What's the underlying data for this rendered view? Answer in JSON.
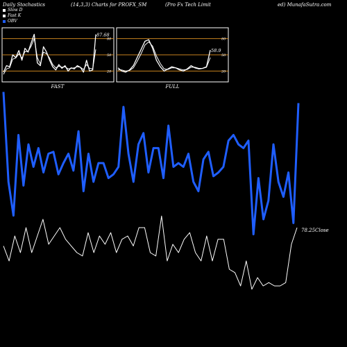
{
  "header": {
    "left": "Daily Stochastics",
    "params": "(14,3,3) Charts for PROFX_SM",
    "company": "(Pro  Fx Tech Limit",
    "site": "ed) MunafaSutra.com"
  },
  "legend": [
    {
      "label": "Slow  D",
      "color": "#ffffff"
    },
    {
      "label": "Fast K",
      "color": "#ffffff"
    },
    {
      "label": "OBV",
      "color": "#1f5eff"
    }
  ],
  "colors": {
    "obv": "#1f5eff",
    "price": "#ffffff",
    "stoch": "#ffffff",
    "band": "#c8821e"
  },
  "chart_data": [
    {
      "type": "line",
      "panel_label": "FAST",
      "last_value_label": "87.68",
      "ylim": [
        0,
        100
      ],
      "ytick_labels": [
        "80",
        "50",
        "20"
      ],
      "ytick_values": [
        80,
        50,
        20
      ],
      "series": [
        {
          "values": [
            18,
            30,
            28,
            50,
            45,
            58,
            40,
            62,
            55,
            72,
            88,
            35,
            30,
            65,
            55,
            40,
            28,
            22,
            32,
            25,
            30,
            20,
            26,
            24,
            30,
            27,
            18,
            40,
            20,
            22,
            87.68
          ]
        },
        {
          "values": [
            14,
            24,
            26,
            42,
            44,
            52,
            44,
            56,
            56,
            66,
            80,
            45,
            33,
            55,
            52,
            44,
            32,
            26,
            29,
            27,
            28,
            24,
            25,
            26,
            28,
            27,
            23,
            32,
            25,
            24,
            60
          ]
        }
      ]
    },
    {
      "type": "line",
      "panel_label": "FULL",
      "last_value_label": "58.9",
      "ylim": [
        0,
        100
      ],
      "ytick_labels": [
        "80",
        "50",
        "20"
      ],
      "ytick_values": [
        80,
        50,
        20
      ],
      "series": [
        {
          "values": [
            26,
            20,
            18,
            22,
            30,
            45,
            60,
            75,
            78,
            62,
            40,
            28,
            20,
            24,
            28,
            26,
            22,
            20,
            24,
            30,
            26,
            24,
            25,
            28,
            58.9
          ]
        },
        {
          "values": [
            22,
            22,
            20,
            21,
            26,
            38,
            52,
            68,
            74,
            66,
            48,
            34,
            24,
            23,
            26,
            26,
            24,
            22,
            23,
            27,
            27,
            25,
            25,
            27,
            45
          ]
        }
      ]
    },
    {
      "type": "line",
      "series": [
        {
          "name": "OBV",
          "values": [
            88,
            40,
            22,
            65,
            38,
            60,
            48,
            58,
            45,
            55,
            56,
            44,
            50,
            55,
            46,
            67,
            35,
            55,
            40,
            50,
            50,
            42,
            44,
            48,
            80,
            55,
            40,
            60,
            66,
            45,
            58,
            58,
            42,
            70,
            48,
            50,
            48,
            55,
            40,
            35,
            52,
            56,
            43,
            45,
            48,
            62,
            65,
            60,
            58,
            62,
            12,
            42,
            20,
            30,
            60,
            40,
            32,
            45,
            18,
            82
          ]
        },
        {
          "name": "Price",
          "values": [
            44,
            35,
            50,
            40,
            55,
            40,
            50,
            60,
            45,
            50,
            55,
            48,
            44,
            40,
            38,
            52,
            40,
            50,
            45,
            52,
            40,
            48,
            50,
            44,
            55,
            55,
            40,
            38,
            62,
            35,
            45,
            40,
            48,
            52,
            40,
            35,
            50,
            35,
            48,
            48,
            30,
            28,
            20,
            35,
            18,
            25,
            20,
            22,
            20,
            20,
            22,
            45,
            55
          ]
        }
      ],
      "price_label": "78.25Close"
    }
  ]
}
